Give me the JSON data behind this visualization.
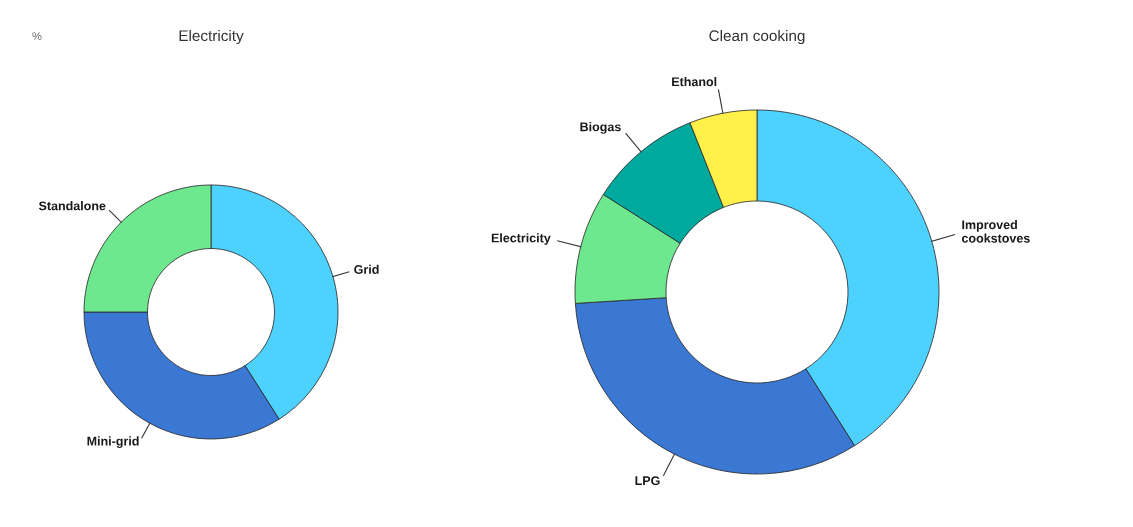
{
  "chart_data": [
    {
      "type": "donut",
      "title": "Electricity",
      "annotations": [
        "%"
      ],
      "categories": [
        "Grid",
        "Mini-grid",
        "Standalone"
      ],
      "values": [
        41,
        34,
        25
      ],
      "colors": [
        "#4dd2ff",
        "#3a78d4",
        "#6ee88f"
      ]
    },
    {
      "type": "donut",
      "title": "Clean cooking",
      "categories": [
        "Improved cookstoves",
        "LPG",
        "Electricity",
        "Biogas",
        "Ethanol"
      ],
      "values": [
        41,
        33,
        10,
        10,
        6
      ],
      "colors": [
        "#4dd2ff",
        "#3a78d4",
        "#6ee88f",
        "#00a99d",
        "#fff04a"
      ]
    }
  ]
}
